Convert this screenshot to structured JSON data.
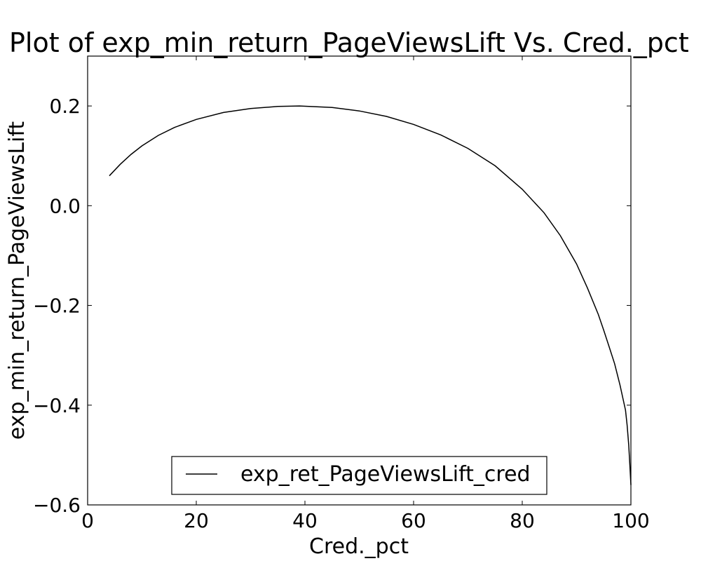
{
  "chart_data": {
    "type": "line",
    "title": "Plot of exp_min_return_PageViewsLift Vs. Cred._pct",
    "xlabel": "Cred._pct",
    "ylabel": "exp_min_return_PageViewsLift",
    "xlim": [
      0,
      100
    ],
    "ylim": [
      -0.6,
      0.3
    ],
    "xticks": [
      0,
      20,
      40,
      60,
      80,
      100
    ],
    "xtick_labels": [
      "0",
      "20",
      "40",
      "60",
      "80",
      "100"
    ],
    "yticks": [
      -0.6,
      -0.4,
      -0.2,
      0.0,
      0.2
    ],
    "ytick_labels": [
      "−0.6",
      "−0.4",
      "−0.2",
      "0.0",
      "0.2"
    ],
    "grid": false,
    "legend_position": "bottom-center",
    "series": [
      {
        "name": "exp_ret_PageViewsLift_cred",
        "color": "#000000",
        "x": [
          4,
          6,
          8,
          10,
          13,
          16,
          20,
          25,
          30,
          35,
          39,
          45,
          50,
          55,
          60,
          65,
          70,
          75,
          80,
          84,
          87,
          90,
          92,
          94,
          95,
          96,
          97,
          98,
          98.5,
          99,
          99.3,
          99.6,
          99.8,
          100
        ],
        "y": [
          0.06,
          0.083,
          0.103,
          0.12,
          0.141,
          0.157,
          0.173,
          0.187,
          0.195,
          0.199,
          0.2,
          0.197,
          0.19,
          0.179,
          0.163,
          0.142,
          0.115,
          0.08,
          0.033,
          -0.014,
          -0.06,
          -0.117,
          -0.165,
          -0.218,
          -0.25,
          -0.283,
          -0.317,
          -0.36,
          -0.385,
          -0.41,
          -0.44,
          -0.48,
          -0.52,
          -0.56
        ]
      }
    ]
  }
}
